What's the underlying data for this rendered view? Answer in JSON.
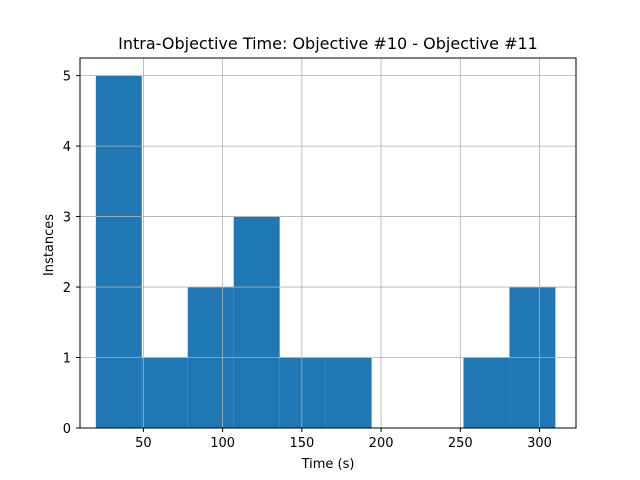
{
  "chart_data": {
    "type": "bar",
    "title": "Intra-Objective Time: Objective #10 - Objective #11",
    "xlabel": "Time (s)",
    "ylabel": "Instances",
    "xlim": [
      10,
      323
    ],
    "ylim": [
      0,
      5.25
    ],
    "xticks": [
      50,
      100,
      150,
      200,
      250,
      300
    ],
    "yticks": [
      0,
      1,
      2,
      3,
      4,
      5
    ],
    "grid": true,
    "bar_color": "#1f77b4",
    "bins": [
      {
        "x0": 20,
        "x1": 49,
        "value": 5
      },
      {
        "x0": 49,
        "x1": 78,
        "value": 1
      },
      {
        "x0": 78,
        "x1": 107,
        "value": 2
      },
      {
        "x0": 107,
        "x1": 136,
        "value": 3
      },
      {
        "x0": 136,
        "x1": 165,
        "value": 1
      },
      {
        "x0": 165,
        "x1": 194,
        "value": 1
      },
      {
        "x0": 194,
        "x1": 223,
        "value": 0
      },
      {
        "x0": 223,
        "x1": 252,
        "value": 0
      },
      {
        "x0": 252,
        "x1": 281,
        "value": 1
      },
      {
        "x0": 281,
        "x1": 310,
        "value": 2
      }
    ]
  }
}
